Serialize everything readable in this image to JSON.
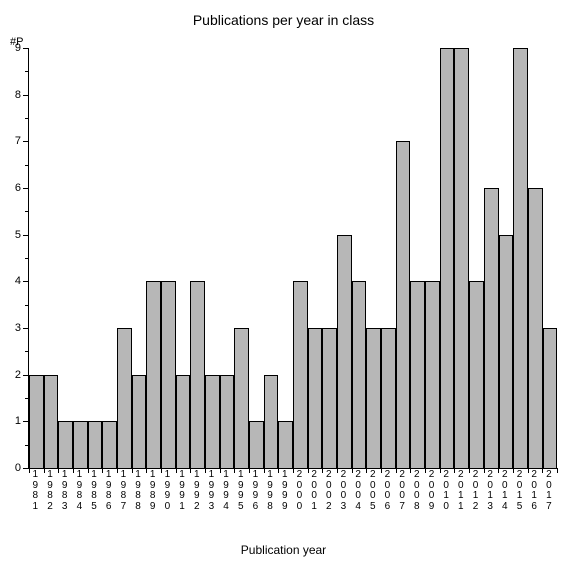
{
  "chart": {
    "type": "bar",
    "title": "Publications per year in class",
    "y_axis_label": "#P",
    "x_axis_label": "Publication year",
    "categories": [
      "1981",
      "1982",
      "1983",
      "1984",
      "1985",
      "1986",
      "1987",
      "1988",
      "1989",
      "1990",
      "1991",
      "1992",
      "1993",
      "1994",
      "1995",
      "1996",
      "1998",
      "1999",
      "2000",
      "2001",
      "2002",
      "2003",
      "2004",
      "2005",
      "2006",
      "2007",
      "2008",
      "2009",
      "2010",
      "2011",
      "2012",
      "2013",
      "2014",
      "2015",
      "2016",
      "2017"
    ],
    "values": [
      2,
      2,
      1,
      1,
      1,
      1,
      3,
      2,
      4,
      4,
      2,
      4,
      2,
      2,
      3,
      1,
      2,
      1,
      4,
      3,
      3,
      5,
      4,
      3,
      3,
      7,
      4,
      4,
      9,
      9,
      4,
      6,
      5,
      9,
      6,
      3
    ],
    "bar_color": "#b7b7b7",
    "bar_border_color": "#000000",
    "background_color": "#ffffff",
    "axis_color": "#000000",
    "ylim": [
      0,
      9
    ],
    "yticks": [
      0,
      1,
      2,
      3,
      4,
      5,
      6,
      7,
      8,
      9
    ],
    "title_fontsize": 14,
    "tick_fontsize": 11,
    "xtick_fontsize": 10,
    "axis_label_fontsize": 12
  }
}
